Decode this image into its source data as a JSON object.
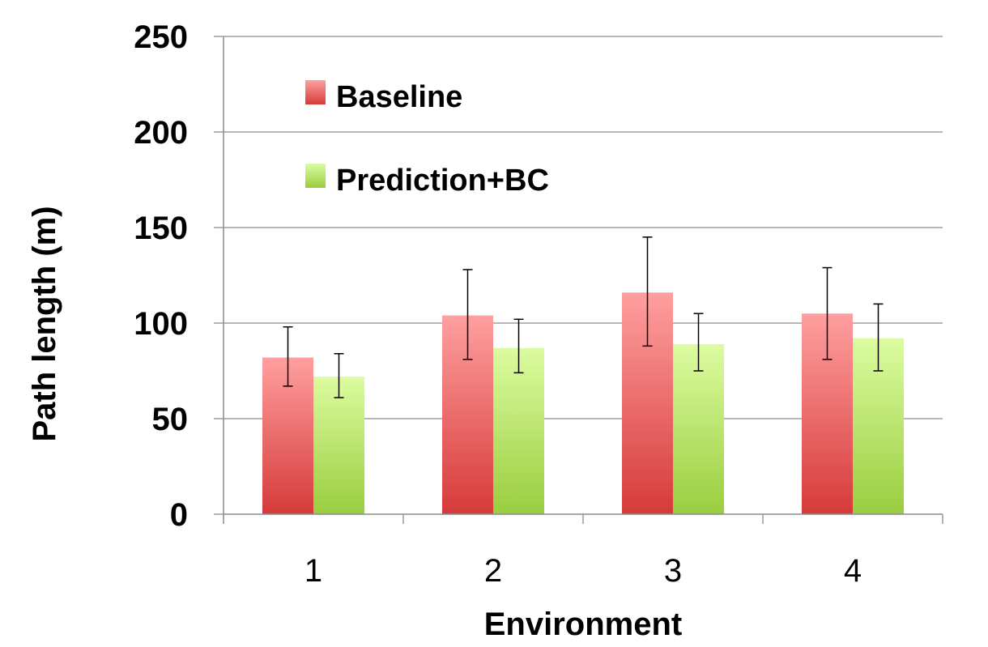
{
  "chart_data": {
    "type": "bar",
    "categories": [
      "1",
      "2",
      "3",
      "4"
    ],
    "series": [
      {
        "name": "Baseline",
        "values": [
          82,
          104,
          116,
          105
        ],
        "error_low": [
          67,
          81,
          88,
          81
        ],
        "error_high": [
          98,
          128,
          145,
          129
        ]
      },
      {
        "name": "Prediction+BC",
        "values": [
          72,
          87,
          89,
          92
        ],
        "error_low": [
          61,
          74,
          75,
          75
        ],
        "error_high": [
          84,
          102,
          105,
          110
        ]
      }
    ],
    "xlabel": "Environment",
    "ylabel": "Path length (m)",
    "ylim": [
      0,
      250
    ],
    "yticks": [
      "0",
      "50",
      "100",
      "150",
      "200",
      "250"
    ],
    "grid": true,
    "legend_position": "top-left inside plot",
    "colors": {
      "baseline_top": "#ff9f9f",
      "baseline_bottom": "#d63a3a",
      "prediction_top": "#dcfca0",
      "prediction_bottom": "#9acd3f"
    }
  }
}
